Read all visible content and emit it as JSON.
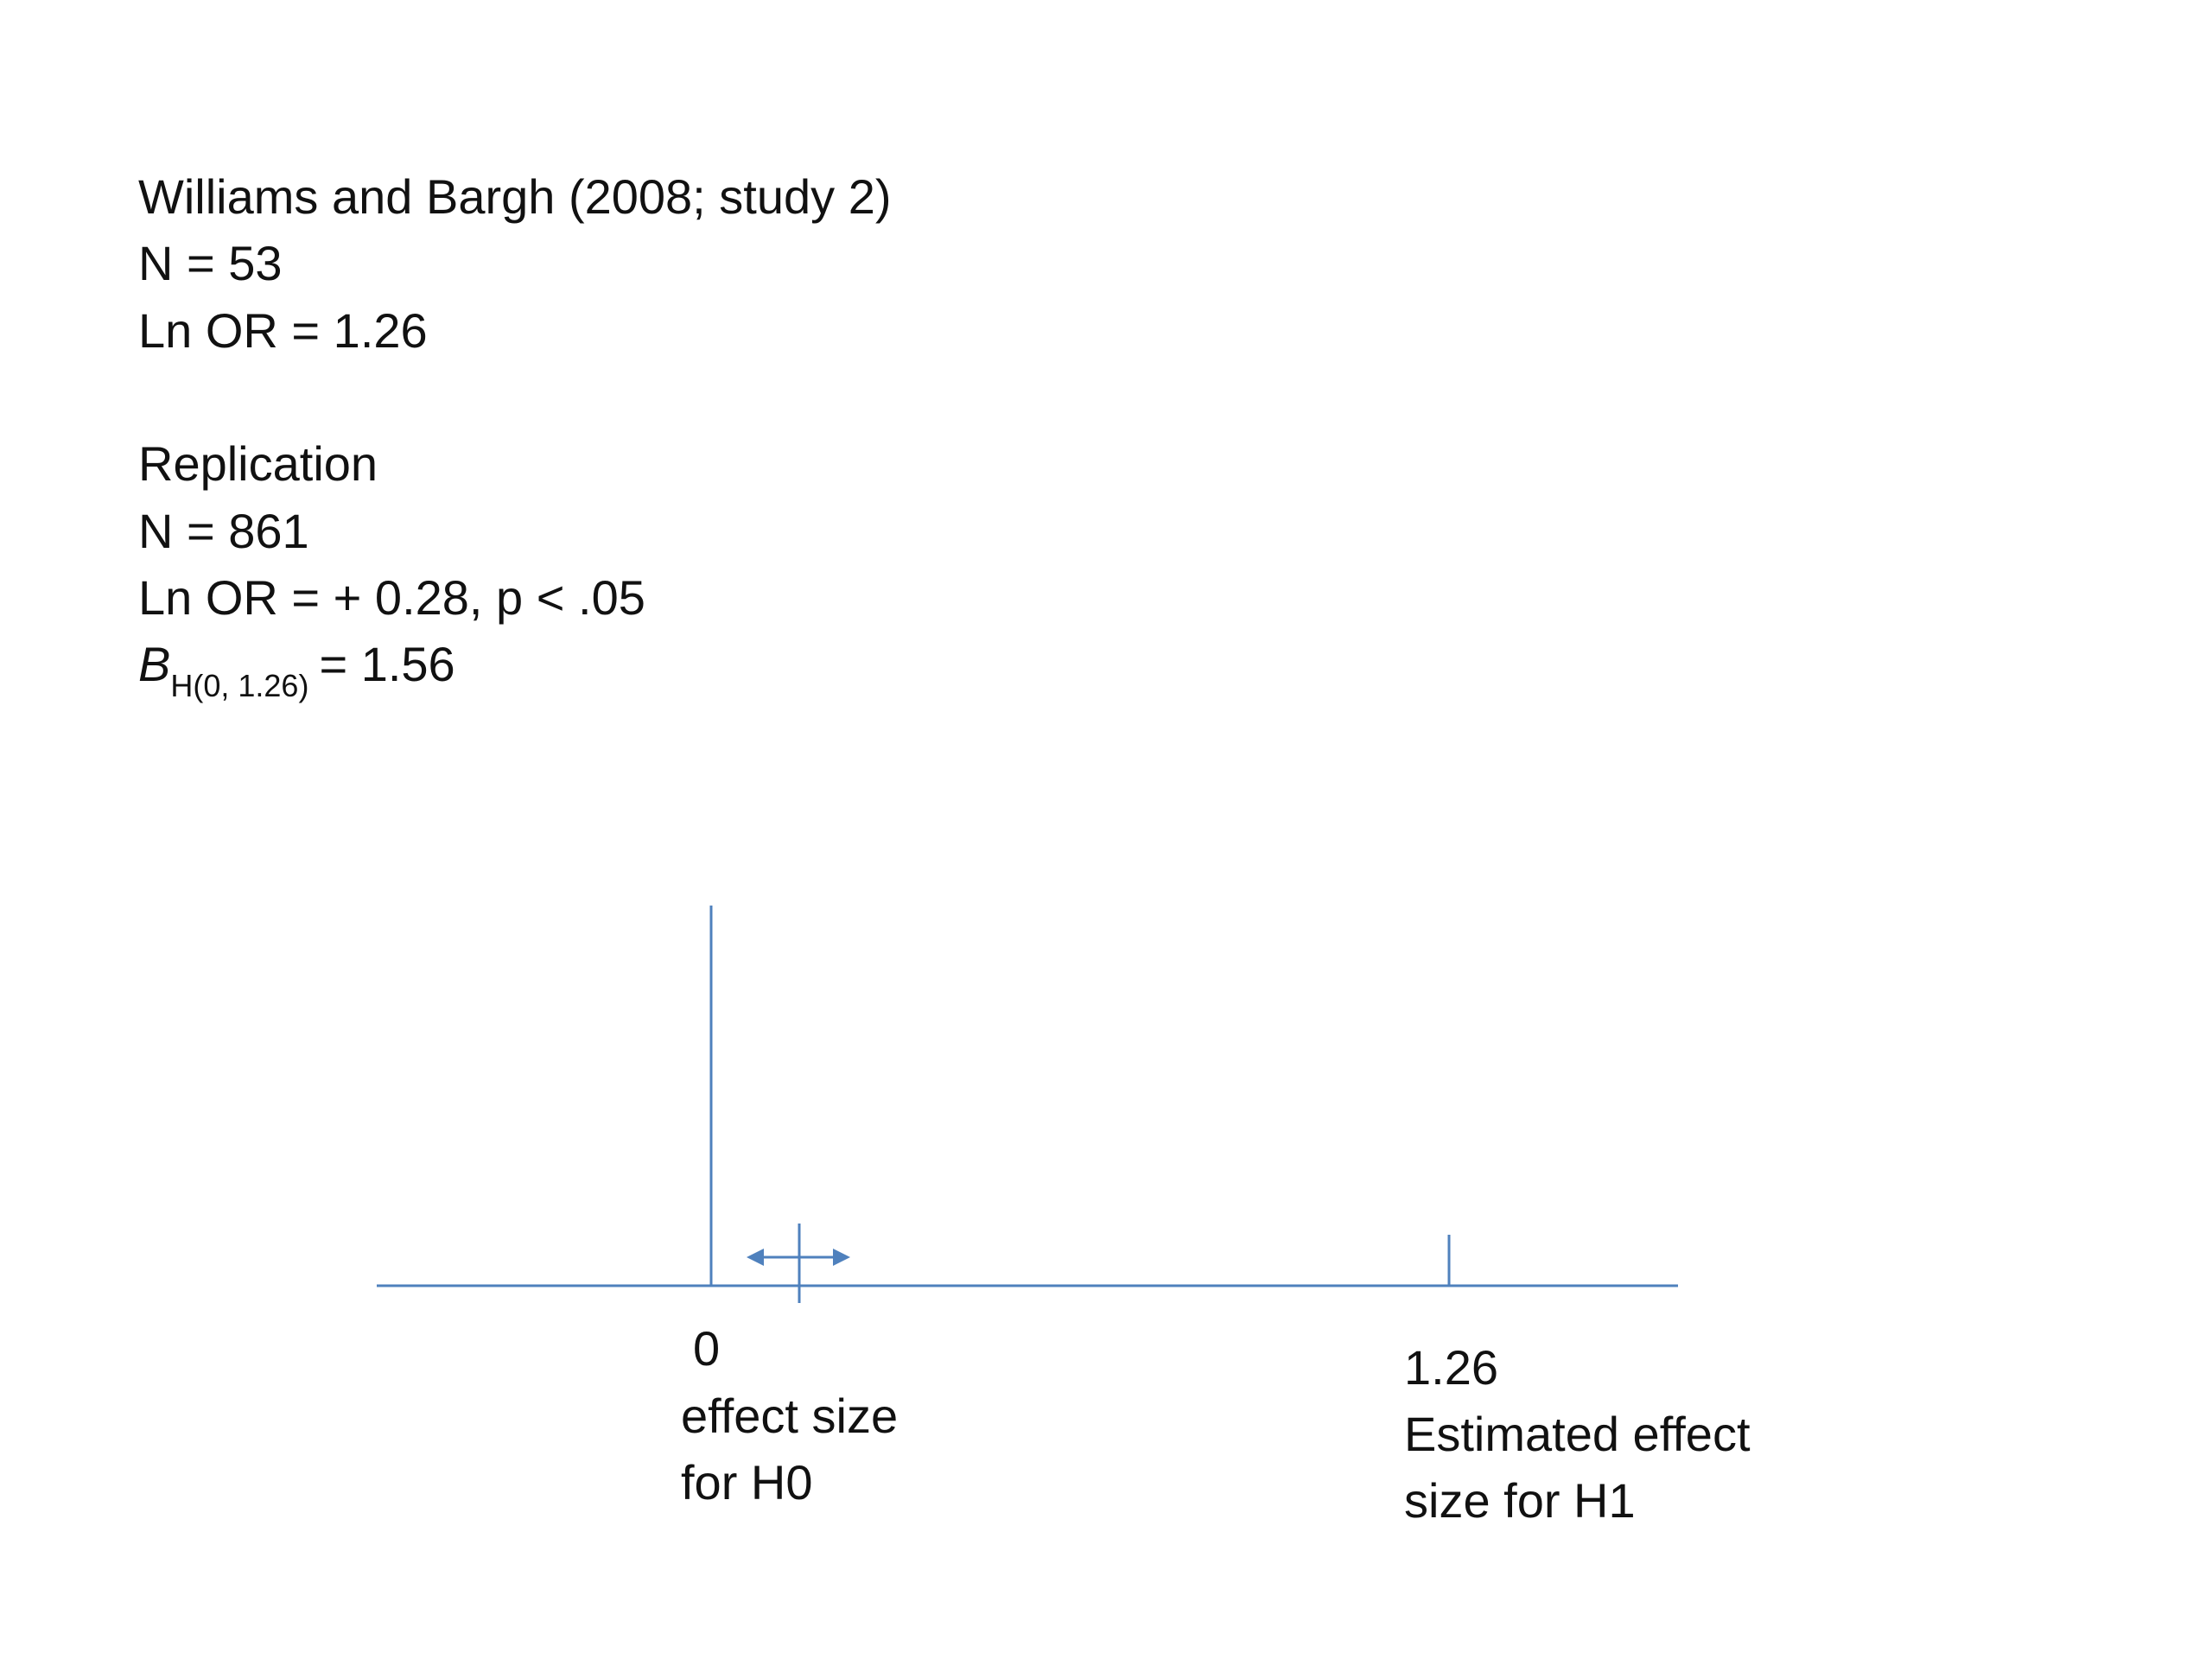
{
  "original": {
    "title": "Williams and Bargh (2008; study 2)",
    "n": "N = 53",
    "effect": "Ln OR = 1.26"
  },
  "replication": {
    "title": "Replication",
    "n": "N = 861",
    "effect": "Ln OR = + 0.28, p < .05",
    "bayes": {
      "symbol": "B",
      "subscript": "H(0, 1.26)",
      "value": "= 1.56"
    }
  },
  "diagram": {
    "h0": {
      "value": "0",
      "label_lines": [
        "effect size",
        "for H0"
      ]
    },
    "h1": {
      "value": "1.26",
      "label_lines": [
        "Estimated effect",
        "size for H1"
      ]
    }
  }
}
